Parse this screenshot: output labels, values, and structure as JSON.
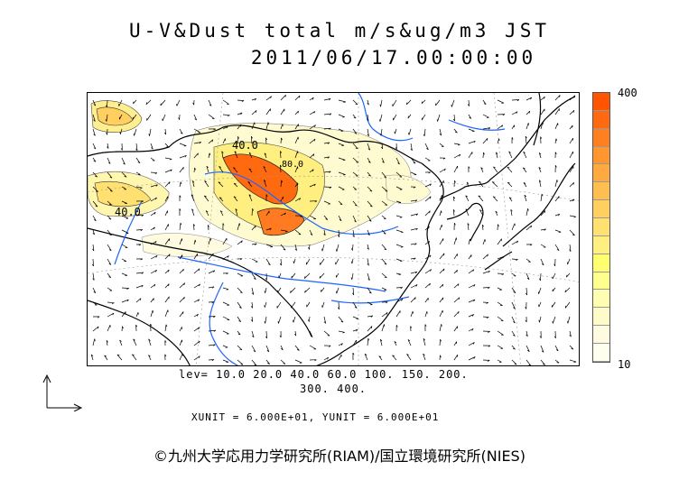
{
  "title_line1": "U-V&Dust total m/s&ug/m3 JST",
  "title_line2": "2011/06/17.00:00:00",
  "colorbar": {
    "max_label": "400",
    "min_label": "10",
    "colors": [
      "#ff5500",
      "#ff6a10",
      "#ff8020",
      "#ff9630",
      "#ffaa40",
      "#ffbe50",
      "#ffd060",
      "#ffe070",
      "#ffee80",
      "#ffff70",
      "#ffff90",
      "#fffdb0",
      "#fffbc8",
      "#fffbe0",
      "#fffff0"
    ]
  },
  "contour_label_1": "40.0",
  "contour_label_2": "40.0",
  "contour_label_3": "80.0",
  "levels_line1": "lev= 10.0 20.0 40.0 60.0 100. 150. 200.",
  "levels_line2": "300. 400.",
  "units_line": "XUNIT = 6.000E+01, YUNIT = 6.000E+01",
  "copyright": "©九州大学応用力学研究所(RIAM)/国立環境研究所(NIES)",
  "colors": {
    "coast": "#000000",
    "rivers": "#1e64ff",
    "grid": "#999999"
  }
}
